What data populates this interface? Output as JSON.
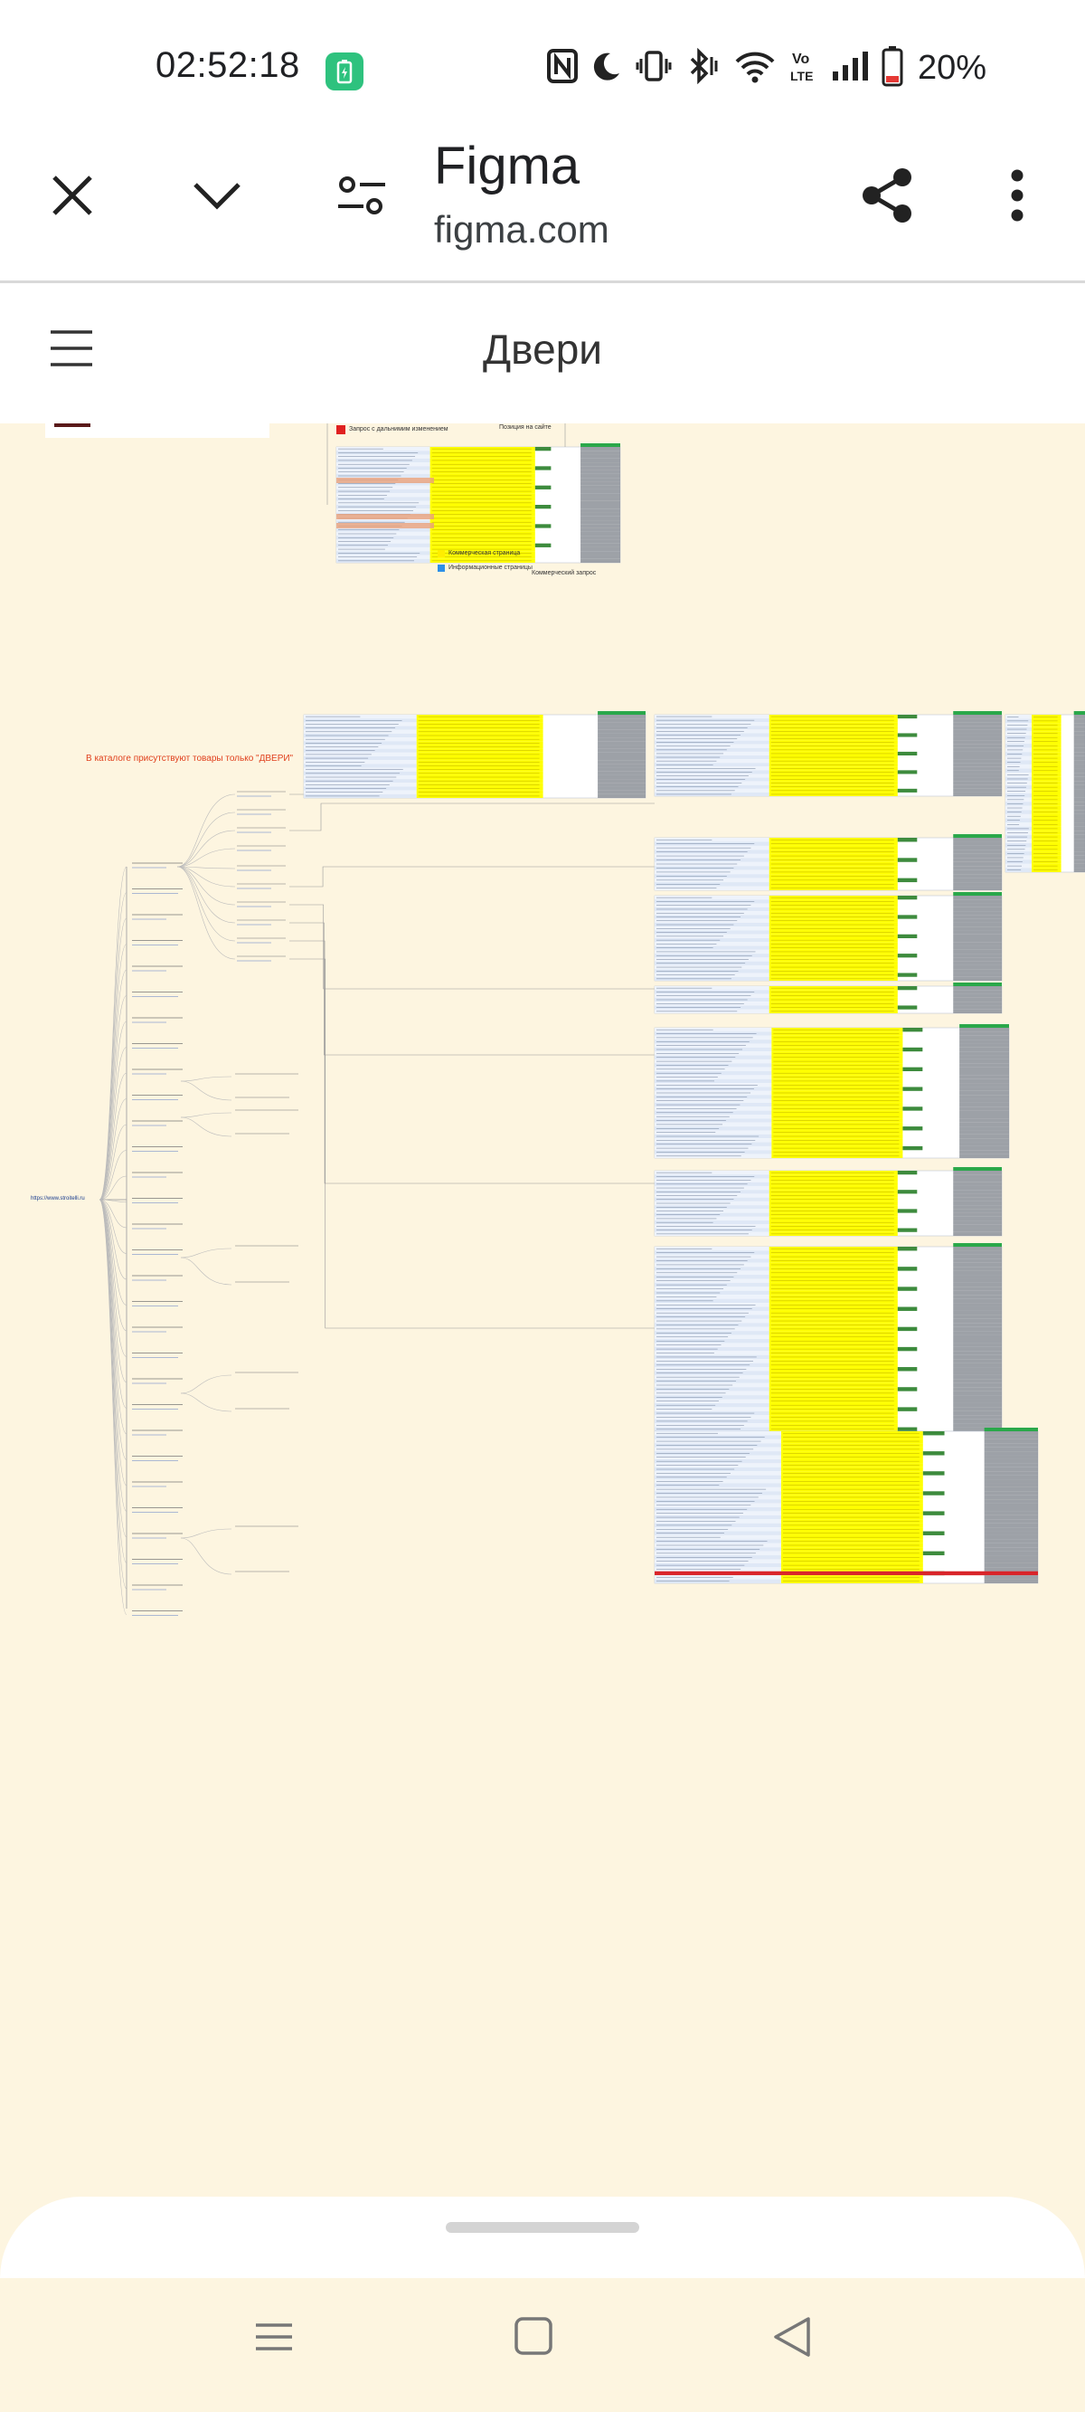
{
  "status_bar": {
    "time": "02:52:18",
    "battery": "20%",
    "icons": [
      "charging-icon",
      "nfc-icon",
      "moon-icon",
      "vibrate-icon",
      "bluetooth-icon",
      "wifi-icon",
      "volte-icon",
      "signal-icon",
      "battery-icon"
    ]
  },
  "browser": {
    "title": "Figma",
    "url": "figma.com",
    "icons": [
      "close-icon",
      "chevron-down-icon",
      "tune-icon",
      "share-icon",
      "more-vert-icon"
    ]
  },
  "figma": {
    "page_title": "Двери",
    "canvas_note": "В каталоге присутствуют товары только \"ДВЕРИ\"",
    "legend_top": "Запрос с дальнимим изменением",
    "legend_pos": "Позиция на сайте",
    "legend_commercial": "Коммерческая страница",
    "legend_info": "Информационные страницы",
    "legend_commercial_req": "Коммерческий запрос",
    "root_label": "https://www.stroitelli.ru"
  },
  "colors": {
    "canvas_bg": "#fdf5e0",
    "highlight_yellow": "#ffff00",
    "accent_red": "#e0401d",
    "table_gray": "#8c9198",
    "table_green": "#3d8b3d"
  },
  "nav": {
    "icons": [
      "recents-icon",
      "home-icon",
      "back-icon"
    ]
  }
}
